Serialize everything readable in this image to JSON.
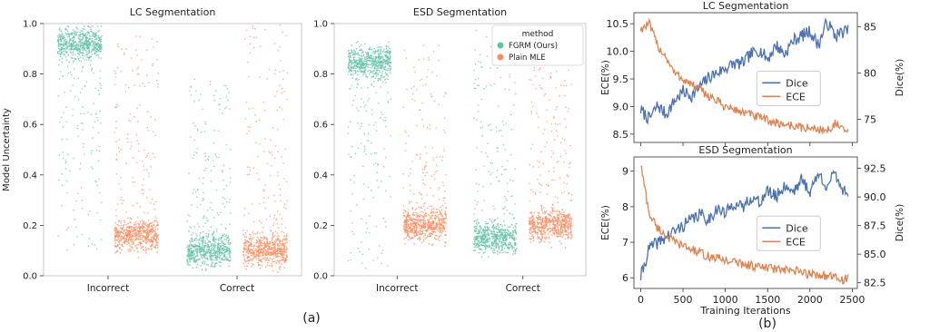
{
  "panel_labels": {
    "a": "(a)",
    "b": "(b)"
  },
  "colors": {
    "fgrm": "#66c2a5",
    "mle": "#fc8d62",
    "dice": "#4c72b0",
    "ece": "#dd8452"
  },
  "chart_data": [
    {
      "type": "scatter",
      "title": "LC Segmentation",
      "ylabel": "Model Uncertainty",
      "xlabel": "",
      "ylim": [
        0,
        1.0
      ],
      "yticks": [
        0.0,
        0.2,
        0.4,
        0.6,
        0.8,
        1.0
      ],
      "categories": [
        "Incorrect",
        "Correct"
      ],
      "series": [
        {
          "name": "FGRM (Ours)",
          "category_groups": [
            {
              "category": "Incorrect",
              "center": 0.92,
              "range": [
                0.1,
                0.99
              ]
            },
            {
              "category": "Correct",
              "center": 0.1,
              "range": [
                0.01,
                0.8
              ]
            }
          ]
        },
        {
          "name": "Plain MLE",
          "category_groups": [
            {
              "category": "Incorrect",
              "center": 0.16,
              "range": [
                0.02,
                0.95
              ]
            },
            {
              "category": "Correct",
              "center": 0.1,
              "range": [
                0.01,
                1.0
              ]
            }
          ]
        }
      ]
    },
    {
      "type": "scatter",
      "title": "ESD Segmentation",
      "ylabel": "",
      "xlabel": "",
      "ylim": [
        0,
        1.0
      ],
      "yticks": [
        0.0,
        0.2,
        0.4,
        0.6,
        0.8,
        1.0
      ],
      "categories": [
        "Incorrect",
        "Correct"
      ],
      "legend": {
        "title": "method",
        "placement": "top-right",
        "entries": [
          "FGRM (Ours)",
          "Plain MLE"
        ]
      },
      "series": [
        {
          "name": "FGRM (Ours)",
          "category_groups": [
            {
              "category": "Incorrect",
              "center": 0.85,
              "range": [
                0.02,
                0.99
              ]
            },
            {
              "category": "Correct",
              "center": 0.15,
              "range": [
                0.02,
                0.98
              ]
            }
          ]
        },
        {
          "name": "Plain MLE",
          "category_groups": [
            {
              "category": "Incorrect",
              "center": 0.2,
              "range": [
                0.03,
                0.92
              ]
            },
            {
              "category": "Correct",
              "center": 0.2,
              "range": [
                0.03,
                0.85
              ]
            }
          ]
        }
      ]
    },
    {
      "type": "line",
      "title": "LC Segmentation",
      "ylabel": "ECE(%)",
      "y2label": "Dice(%)",
      "xlabel": "",
      "xlim": [
        -80,
        2560
      ],
      "ylim": [
        8.35,
        10.7
      ],
      "y2lim": [
        72.5,
        86.5
      ],
      "yticks": [
        8.5,
        9.0,
        9.5,
        10.0,
        10.5
      ],
      "y2ticks": [
        75,
        80,
        85
      ],
      "legend": {
        "placement": "center-right",
        "entries": [
          "Dice",
          "ECE"
        ]
      },
      "series": [
        {
          "name": "Dice",
          "axis": "right",
          "x": [
            0,
            100,
            200,
            300,
            400,
            500,
            600,
            700,
            800,
            900,
            1000,
            1100,
            1200,
            1300,
            1400,
            1500,
            1600,
            1700,
            1800,
            1900,
            2000,
            2100,
            2200,
            2300,
            2400,
            2450
          ],
          "values": [
            76.0,
            75.0,
            76.5,
            75.5,
            77.0,
            78.0,
            77.5,
            78.5,
            79.5,
            80.0,
            80.5,
            81.0,
            81.0,
            82.0,
            82.5,
            81.5,
            83.0,
            82.0,
            83.5,
            84.0,
            84.5,
            83.0,
            85.5,
            84.0,
            84.5,
            84.5
          ]
        },
        {
          "name": "ECE",
          "axis": "left",
          "x": [
            0,
            100,
            200,
            300,
            400,
            500,
            600,
            700,
            800,
            900,
            1000,
            1100,
            1200,
            1300,
            1400,
            1500,
            1600,
            1700,
            1800,
            1900,
            2000,
            2100,
            2200,
            2300,
            2400,
            2450
          ],
          "values": [
            10.4,
            10.5,
            10.1,
            9.9,
            9.6,
            9.5,
            9.4,
            9.3,
            9.2,
            9.1,
            9.0,
            8.95,
            8.9,
            8.85,
            8.8,
            8.75,
            8.7,
            8.68,
            8.65,
            8.62,
            8.6,
            8.6,
            8.55,
            8.7,
            8.55,
            8.55
          ]
        }
      ]
    },
    {
      "type": "line",
      "title": "ESD Segmentation",
      "ylabel": "ECE(%)",
      "y2label": "Dice(%)",
      "xlabel": "Training Iterations",
      "xlim": [
        -80,
        2560
      ],
      "ylim": [
        5.7,
        9.4
      ],
      "y2lim": [
        82.0,
        93.5
      ],
      "xticks": [
        0,
        500,
        1000,
        1500,
        2000,
        2500
      ],
      "yticks": [
        6,
        7,
        8,
        9
      ],
      "y2ticks": [
        82.5,
        85.0,
        87.5,
        90.0,
        92.5
      ],
      "legend": {
        "placement": "center-right",
        "entries": [
          "Dice",
          "ECE"
        ]
      },
      "series": [
        {
          "name": "Dice",
          "axis": "right",
          "x": [
            0,
            100,
            200,
            300,
            400,
            500,
            600,
            700,
            800,
            900,
            1000,
            1100,
            1200,
            1300,
            1400,
            1500,
            1600,
            1700,
            1800,
            1900,
            2000,
            2100,
            2200,
            2300,
            2400,
            2450
          ],
          "values": [
            83.0,
            85.5,
            86.0,
            86.5,
            87.0,
            87.5,
            88.0,
            88.5,
            88.0,
            89.0,
            88.5,
            89.5,
            89.0,
            90.0,
            89.5,
            90.5,
            90.0,
            91.0,
            90.5,
            91.5,
            90.5,
            92.0,
            91.0,
            92.0,
            90.5,
            90.5
          ]
        },
        {
          "name": "ECE",
          "axis": "left",
          "x": [
            0,
            100,
            200,
            300,
            400,
            500,
            600,
            700,
            800,
            900,
            1000,
            1100,
            1200,
            1300,
            1400,
            1500,
            1600,
            1700,
            1800,
            1900,
            2000,
            2100,
            2200,
            2300,
            2400,
            2450
          ],
          "values": [
            9.2,
            7.8,
            7.4,
            7.2,
            7.0,
            6.9,
            6.8,
            6.7,
            6.6,
            6.55,
            6.5,
            6.45,
            6.4,
            6.35,
            6.3,
            6.28,
            6.25,
            6.2,
            6.2,
            6.15,
            6.1,
            6.1,
            6.05,
            6.0,
            5.95,
            6.0
          ]
        }
      ]
    }
  ]
}
